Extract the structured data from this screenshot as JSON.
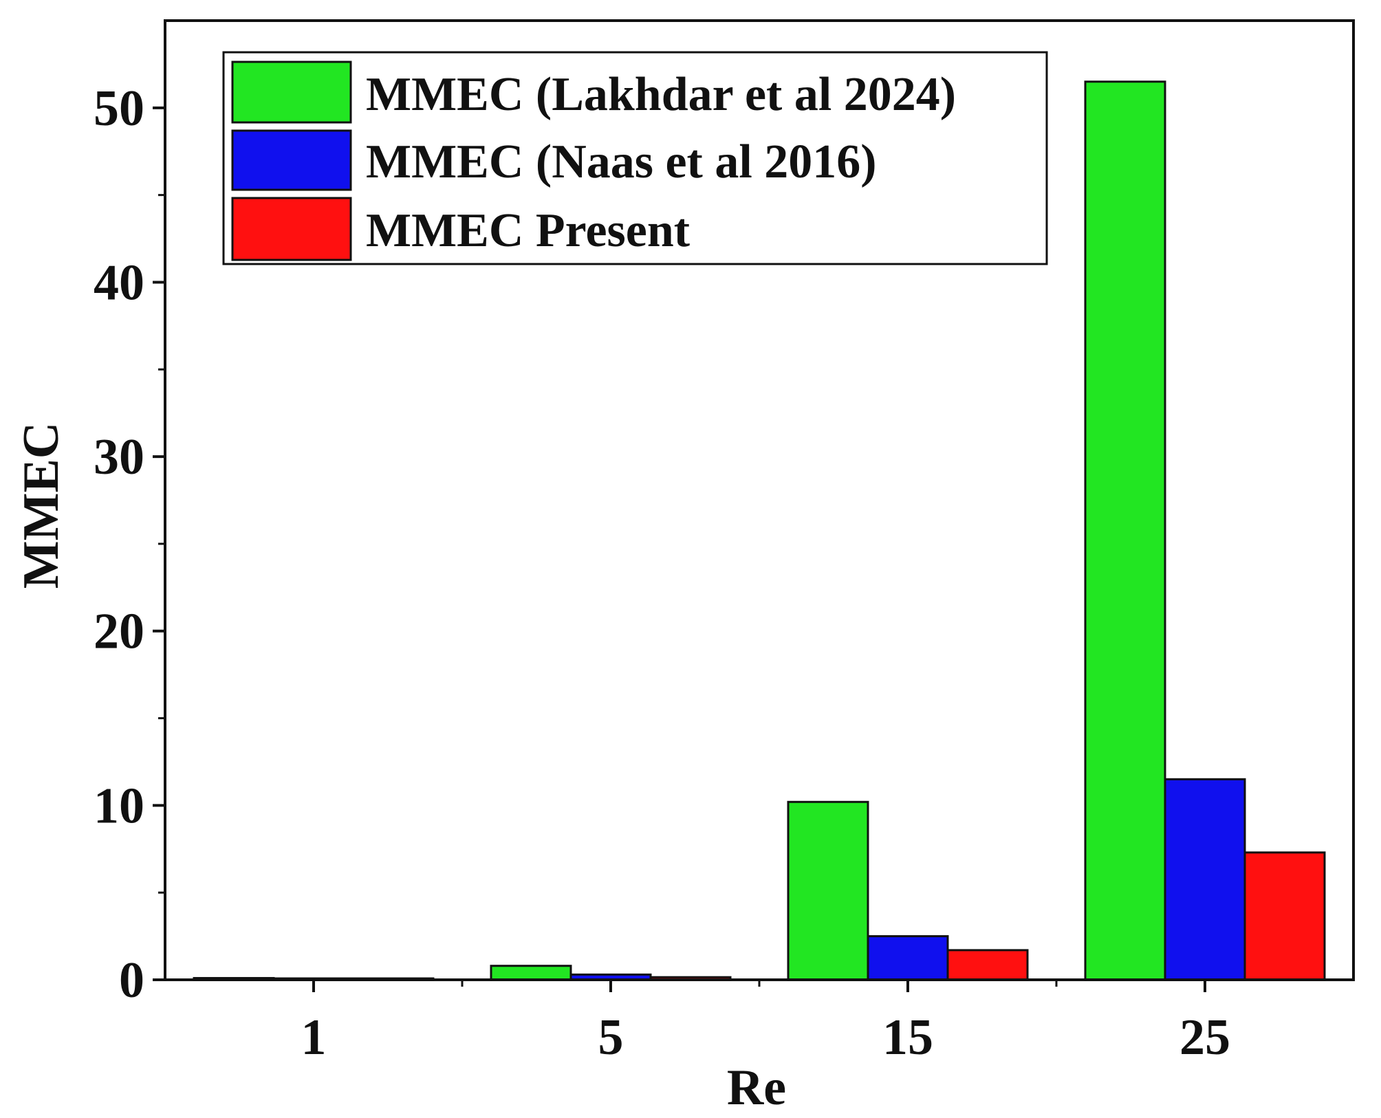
{
  "chart_data": {
    "type": "bar",
    "title": "",
    "xlabel": "Re",
    "ylabel": "MMEC",
    "categories": [
      "1",
      "5",
      "15",
      "25"
    ],
    "ylim": [
      0,
      55
    ],
    "yticks": [
      "0",
      "10",
      "20",
      "30",
      "40",
      "50"
    ],
    "grid": false,
    "legend_position": "top-left",
    "series": [
      {
        "name": "MMEC (Lakhdar et al 2024)",
        "color": "#22e622",
        "values": [
          0.1,
          0.8,
          10.2,
          51.5
        ]
      },
      {
        "name": "MMEC (Naas et al 2016)",
        "color": "#1010ee",
        "values": [
          0.05,
          0.3,
          2.5,
          11.5
        ]
      },
      {
        "name": "MMEC Present",
        "color": "#ff1010",
        "values": [
          0.02,
          0.15,
          1.7,
          7.3
        ]
      }
    ]
  }
}
